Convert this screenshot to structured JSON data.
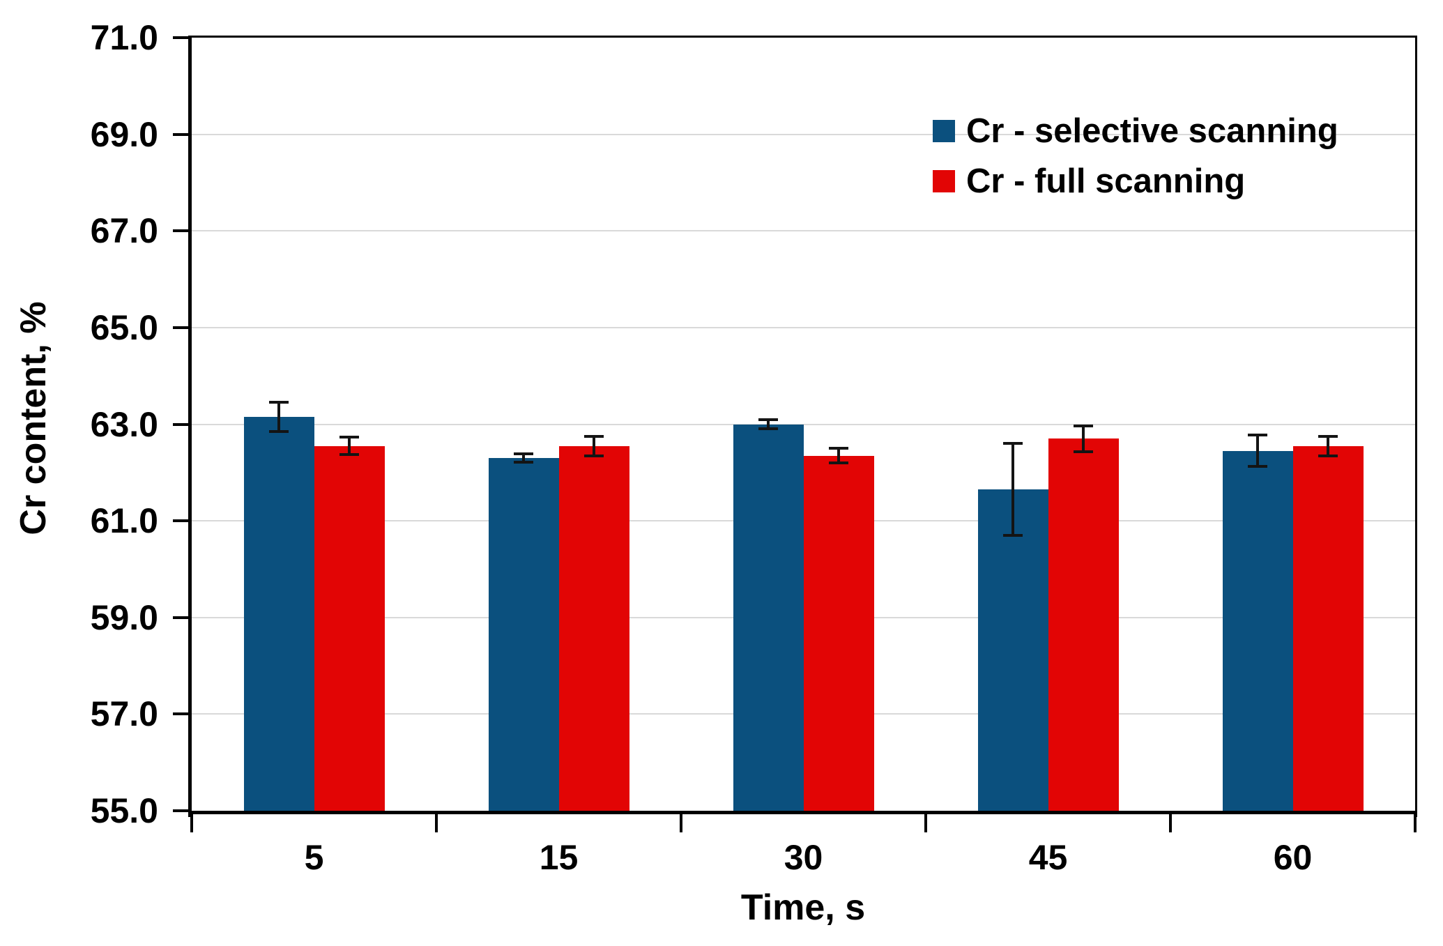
{
  "chart_data": {
    "type": "bar",
    "title": "",
    "xlabel": "Time, s",
    "ylabel": "Cr content, %",
    "categories": [
      "5",
      "15",
      "30",
      "45",
      "60"
    ],
    "series": [
      {
        "name": "Cr - selective scanning",
        "color": "#0B507E",
        "values": [
          63.15,
          62.3,
          63.0,
          61.65,
          62.45
        ],
        "errors": [
          0.3,
          0.08,
          0.1,
          0.95,
          0.33
        ]
      },
      {
        "name": "Cr - full scanning",
        "color": "#E20505",
        "values": [
          62.55,
          62.55,
          62.35,
          62.7,
          62.55
        ],
        "errors": [
          0.18,
          0.2,
          0.15,
          0.27,
          0.2
        ]
      }
    ],
    "ylim": [
      55.0,
      71.0
    ],
    "ytick_step": 2.0,
    "ytick_decimals": 1,
    "grid": true,
    "legend_position": "top-right",
    "error_bar_color": "#141414",
    "axis_color": "#000000",
    "gridline_color": "#d9d9d9",
    "background_color": "#ffffff"
  }
}
